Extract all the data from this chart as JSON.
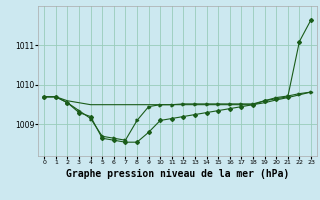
{
  "background_color": "#cce8f0",
  "grid_color": "#99ccbb",
  "line_color": "#1a5c1a",
  "title": "Graphe pression niveau de la mer (hPa)",
  "title_fontsize": 7,
  "xlim": [
    -0.5,
    23.5
  ],
  "ylim": [
    1008.2,
    1012.0
  ],
  "yticks": [
    1009,
    1010,
    1011
  ],
  "xticks": [
    0,
    1,
    2,
    3,
    4,
    5,
    6,
    7,
    8,
    9,
    10,
    11,
    12,
    13,
    14,
    15,
    16,
    17,
    18,
    19,
    20,
    21,
    22,
    23
  ],
  "series1_x": [
    0,
    1,
    2,
    3,
    4,
    5,
    6,
    7,
    8,
    9,
    10,
    11,
    12,
    13,
    14,
    15,
    16,
    17,
    18,
    19,
    20,
    21,
    22,
    23
  ],
  "series1_y": [
    1009.7,
    1009.7,
    1009.55,
    1009.3,
    1009.2,
    1008.65,
    1008.6,
    1008.55,
    1008.55,
    1008.8,
    1009.1,
    1009.15,
    1009.2,
    1009.25,
    1009.3,
    1009.35,
    1009.4,
    1009.45,
    1009.5,
    1009.6,
    1009.65,
    1009.7,
    1011.1,
    1011.65
  ],
  "series2_x": [
    0,
    1,
    2,
    3,
    4,
    5,
    6,
    7,
    8,
    9,
    10,
    11,
    12,
    13,
    14,
    15,
    16,
    17,
    18,
    19,
    20,
    21,
    22,
    23
  ],
  "series2_y": [
    1009.7,
    1009.7,
    1009.55,
    1009.35,
    1009.15,
    1008.7,
    1008.65,
    1008.6,
    1009.1,
    1009.45,
    1009.5,
    1009.5,
    1009.52,
    1009.52,
    1009.52,
    1009.52,
    1009.52,
    1009.52,
    1009.52,
    1009.6,
    1009.68,
    1009.72,
    1009.78,
    1009.82
  ],
  "series3_x": [
    0,
    1,
    2,
    3,
    4,
    5,
    6,
    7,
    8,
    9,
    10,
    11,
    12,
    13,
    14,
    15,
    16,
    17,
    18,
    19,
    20,
    21,
    22,
    23
  ],
  "series3_y": [
    1009.7,
    1009.7,
    1009.6,
    1009.55,
    1009.5,
    1009.5,
    1009.5,
    1009.5,
    1009.5,
    1009.5,
    1009.5,
    1009.5,
    1009.5,
    1009.5,
    1009.5,
    1009.5,
    1009.5,
    1009.5,
    1009.5,
    1009.55,
    1009.62,
    1009.68,
    1009.75,
    1009.82
  ]
}
